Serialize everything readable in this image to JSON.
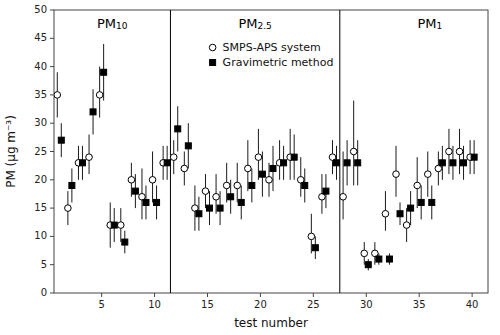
{
  "chart_data": {
    "type": "scatter",
    "x_label": "test number",
    "y_label": "PM (μg m⁻³)",
    "x": [
      1,
      2,
      3,
      4,
      5,
      6,
      7,
      8,
      9,
      10,
      11,
      12,
      13,
      14,
      15,
      16,
      17,
      18,
      19,
      20,
      21,
      22,
      23,
      24,
      25,
      26,
      27,
      28,
      29,
      30,
      31,
      32,
      33,
      34,
      35,
      36,
      37,
      38,
      39,
      40
    ],
    "series": [
      {
        "name": "SMPS-APS system",
        "color": "black",
        "marker": "circle-open",
        "values": [
          35,
          15,
          23,
          24,
          35,
          12,
          12,
          20,
          17,
          20,
          23,
          24,
          22,
          15,
          18,
          17,
          19,
          19,
          22,
          24,
          20,
          23,
          24,
          20,
          10,
          17,
          24,
          17,
          25,
          7,
          7,
          14,
          21,
          12,
          19,
          21,
          22,
          25,
          25,
          24
        ],
        "error_low": [
          4,
          3,
          3,
          3,
          4,
          4,
          3,
          3,
          4,
          4,
          3,
          3,
          3,
          4,
          3,
          3,
          3,
          3,
          4,
          4,
          3,
          3,
          4,
          3,
          3,
          3,
          3,
          4,
          6,
          2,
          2,
          3,
          4,
          3,
          4,
          4,
          3,
          4,
          4,
          3
        ],
        "error_high": [
          4,
          3,
          3,
          4,
          5,
          4,
          3,
          3,
          5,
          5,
          3,
          3,
          3,
          4,
          3,
          4,
          4,
          4,
          5,
          5,
          3,
          4,
          5,
          4,
          4,
          4,
          3,
          8,
          9,
          2,
          2,
          4,
          5,
          3,
          5,
          4,
          3,
          4,
          4,
          3
        ]
      },
      {
        "name": "Gravimetric method",
        "color": "black",
        "marker": "square",
        "values": [
          27,
          19,
          23,
          32,
          39,
          12,
          9,
          18,
          16,
          16,
          23,
          29,
          26,
          14,
          15,
          15,
          17,
          16,
          19,
          21,
          22,
          23,
          24,
          19,
          8,
          18,
          23,
          23,
          23,
          5,
          6,
          6,
          14,
          15,
          16,
          16,
          23,
          23,
          23,
          24
        ],
        "error_low": [
          3,
          3,
          3,
          4,
          5,
          3,
          2,
          3,
          3,
          3,
          3,
          4,
          4,
          3,
          3,
          3,
          3,
          3,
          3,
          4,
          4,
          3,
          4,
          3,
          2,
          3,
          3,
          4,
          4,
          1,
          1,
          1,
          2,
          3,
          3,
          3,
          3,
          3,
          3,
          3
        ],
        "error_high": [
          3,
          3,
          3,
          4,
          5,
          3,
          2,
          3,
          3,
          3,
          3,
          4,
          4,
          3,
          3,
          3,
          3,
          3,
          3,
          4,
          4,
          3,
          4,
          3,
          2,
          3,
          3,
          4,
          4,
          1,
          1,
          1,
          2,
          3,
          3,
          3,
          3,
          3,
          3,
          3
        ]
      }
    ],
    "vlines": [
      11.5,
      27.5
    ],
    "annotations": [
      {
        "text": "PM10",
        "x": 6.0,
        "y": 48.5
      },
      {
        "text": "PM2.5",
        "x": 19.5,
        "y": 48.5
      },
      {
        "text": "PM1",
        "x": 36.0,
        "y": 48.5
      }
    ],
    "xlim": [
      0.5,
      41.5
    ],
    "xticks": [
      5,
      10,
      15,
      20,
      25,
      30,
      35,
      40
    ],
    "ylim": [
      0,
      50
    ],
    "yticks": [
      0,
      5,
      10,
      15,
      20,
      25,
      30,
      35,
      40,
      45,
      50
    ],
    "legend": "top"
  }
}
